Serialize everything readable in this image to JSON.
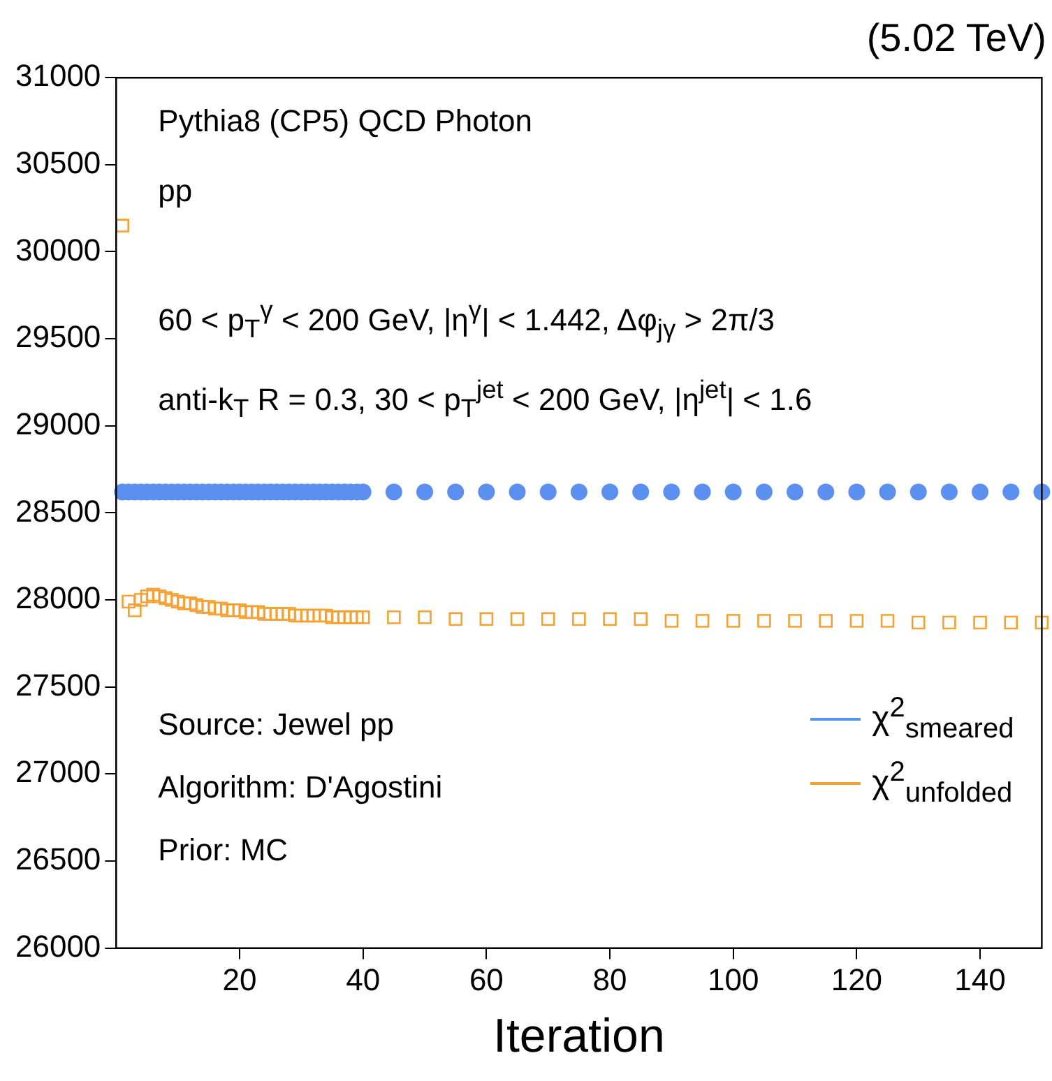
{
  "chart_data": {
    "type": "scatter",
    "title": "(5.02 TeV)",
    "xlabel": "Iteration",
    "annotations": [
      "Pythia8 (CP5) QCD Photon",
      "pp",
      "60 < p$_{T}$$^{γ}$ < 200 GeV, |η$^{γ}$| < 1.442, Δφ$_{jγ}$ > 2π/3",
      "anti-k$_{T}$ R = 0.3, 30 < p$_{T}$$^{jet}$ < 200 GeV, |η$^{jet}$| < 1.6",
      "Source: Jewel pp",
      "Algorithm: D'Agostini",
      "Prior: MC"
    ],
    "x": [
      1,
      2,
      3,
      4,
      5,
      6,
      7,
      8,
      9,
      10,
      11,
      12,
      13,
      14,
      15,
      16,
      17,
      18,
      19,
      20,
      21,
      22,
      23,
      24,
      25,
      26,
      27,
      28,
      29,
      30,
      31,
      32,
      33,
      34,
      35,
      36,
      37,
      38,
      39,
      40,
      45,
      50,
      55,
      60,
      65,
      70,
      75,
      80,
      85,
      90,
      95,
      100,
      105,
      110,
      115,
      120,
      125,
      130,
      135,
      140,
      145,
      150
    ],
    "series": [
      {
        "name": "χ$^{2}$$_{smeared}$",
        "color": "#5b8ff0",
        "marker": "circle",
        "values": [
          28620,
          28620,
          28620,
          28620,
          28620,
          28620,
          28620,
          28620,
          28620,
          28620,
          28620,
          28620,
          28620,
          28620,
          28620,
          28620,
          28620,
          28620,
          28620,
          28620,
          28620,
          28620,
          28620,
          28620,
          28620,
          28620,
          28620,
          28620,
          28620,
          28620,
          28620,
          28620,
          28620,
          28620,
          28620,
          28620,
          28620,
          28620,
          28620,
          28620,
          28620,
          28620,
          28620,
          28620,
          28620,
          28620,
          28620,
          28620,
          28620,
          28620,
          28620,
          28620,
          28620,
          28620,
          28620,
          28620,
          28620,
          28620,
          28620,
          28620,
          28620,
          28620
        ]
      },
      {
        "name": "χ$^{2}$$_{unfolded}$",
        "color": "#f5a030",
        "marker": "square",
        "values": [
          30150,
          27990,
          27940,
          28000,
          28020,
          28030,
          28020,
          28010,
          28000,
          27990,
          27980,
          27980,
          27970,
          27960,
          27960,
          27950,
          27950,
          27940,
          27940,
          27940,
          27930,
          27930,
          27930,
          27920,
          27920,
          27920,
          27920,
          27920,
          27910,
          27910,
          27910,
          27910,
          27910,
          27910,
          27900,
          27900,
          27900,
          27900,
          27900,
          27900,
          27900,
          27900,
          27890,
          27890,
          27890,
          27890,
          27890,
          27890,
          27890,
          27880,
          27880,
          27880,
          27880,
          27880,
          27880,
          27880,
          27880,
          27870,
          27870,
          27870,
          27870,
          27870
        ]
      }
    ],
    "xlim": [
      0,
      150
    ],
    "xticks": [
      20,
      40,
      60,
      80,
      100,
      120,
      140
    ],
    "ylim": [
      26000,
      31000
    ],
    "yticks": [
      26000,
      26500,
      27000,
      27500,
      28000,
      28500,
      29000,
      29500,
      30000,
      30500,
      31000
    ],
    "grid": false,
    "legend": "bottom right"
  }
}
